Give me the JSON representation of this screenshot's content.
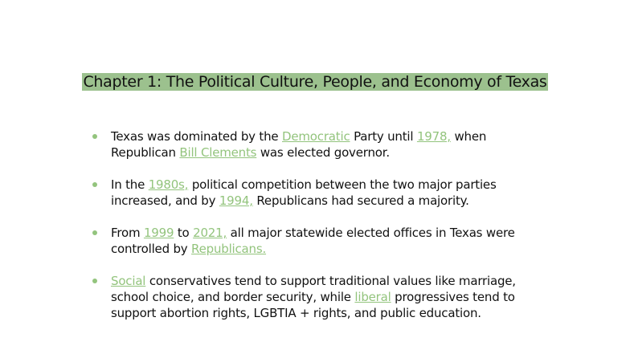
{
  "title": "Chapter 1: The Political Culture, People, and Economy of Texas",
  "colors": {
    "highlight": "#9cc18e",
    "link": "#93c47d",
    "bullet": "#93c47d"
  },
  "bullets": [
    [
      {
        "t": "Texas was dominated by the "
      },
      {
        "t": "Democratic",
        "link": true
      },
      {
        "t": " Party until "
      },
      {
        "t": "1978,",
        "link": true
      },
      {
        "t": " when Republican "
      },
      {
        "t": "Bill Clements",
        "link": true
      },
      {
        "t": " was elected governor."
      }
    ],
    [
      {
        "t": "In the "
      },
      {
        "t": "1980s,",
        "link": true
      },
      {
        "t": " political competition between the two major parties increased, and by "
      },
      {
        "t": "1994,",
        "link": true
      },
      {
        "t": " Republicans had secured a majority."
      }
    ],
    [
      {
        "t": "From "
      },
      {
        "t": "1999",
        "link": true
      },
      {
        "t": " to "
      },
      {
        "t": "2021,",
        "link": true
      },
      {
        "t": " all major statewide elected offices in Texas were controlled by "
      },
      {
        "t": "Republicans.",
        "link": true
      }
    ],
    [
      {
        "t": "Social",
        "link": true
      },
      {
        "t": " conservatives tend to support traditional values like marriage, school choice, and border security, while "
      },
      {
        "t": "liberal",
        "link": true
      },
      {
        "t": " progressives tend to support abortion rights, LGBTIA + rights, and public education."
      }
    ]
  ]
}
